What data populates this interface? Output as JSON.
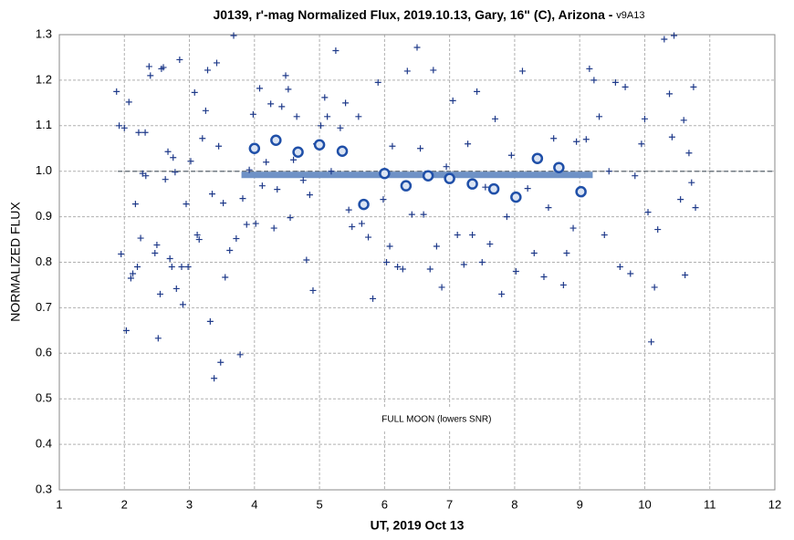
{
  "chart_data": {
    "type": "scatter",
    "title": "J0139, r'-mag Normalized Flux, 2019.10.13, Gary, 16\" (C), Arizona - ",
    "title_suffix": "v9A13",
    "x_label": "UT, 2019 Oct 13",
    "y_label": "NORMALIZED FLUX",
    "xlim": [
      1,
      12
    ],
    "ylim": [
      0.3,
      1.3
    ],
    "xticks": [
      1,
      2,
      3,
      4,
      5,
      6,
      7,
      8,
      9,
      10,
      11,
      12
    ],
    "yticks": [
      0.3,
      0.4,
      0.5,
      0.6,
      0.7,
      0.8,
      0.9,
      {
        "value": 1,
        "label": "1.0"
      },
      1.1,
      1.2,
      1.3
    ],
    "grid": true,
    "annotation": {
      "text": "FULL MOON (lowers SNR)",
      "x": 6.8,
      "y": 0.455
    },
    "series": [
      {
        "style": "cross",
        "color": "#1f3a8a",
        "x": [
          1.88,
          1.92,
          1.95,
          2.0,
          2.03,
          2.07,
          2.1,
          2.13,
          2.17,
          2.2,
          2.22,
          2.25,
          2.28,
          2.32,
          2.33,
          2.38,
          2.4,
          2.47,
          2.5,
          2.52,
          2.55,
          2.57,
          2.6,
          2.63,
          2.67,
          2.7,
          2.73,
          2.75,
          2.78,
          2.8,
          2.85,
          2.88,
          2.9,
          2.95,
          2.98,
          3.02,
          3.08,
          3.12,
          3.15,
          3.2,
          3.25,
          3.28,
          3.32,
          3.35,
          3.38,
          3.42,
          3.45,
          3.48,
          3.52,
          3.55,
          3.62,
          3.68,
          3.72,
          3.78,
          3.82,
          3.88,
          3.92,
          3.98,
          4.02,
          4.08,
          4.12,
          4.18,
          4.25,
          4.3,
          4.35,
          4.42,
          4.48,
          4.52,
          4.55,
          4.6,
          4.65,
          4.75,
          4.8,
          4.85,
          4.9,
          4.95,
          5.02,
          5.08,
          5.12,
          5.18,
          5.25,
          5.32,
          5.4,
          5.45,
          5.5,
          5.6,
          5.65,
          5.75,
          5.82,
          5.9,
          5.98,
          6.03,
          6.08,
          6.12,
          6.2,
          6.28,
          6.35,
          6.42,
          6.5,
          6.55,
          6.6,
          6.7,
          6.75,
          6.8,
          6.88,
          6.95,
          7.05,
          7.12,
          7.22,
          7.28,
          7.35,
          7.42,
          7.5,
          7.55,
          7.62,
          7.7,
          7.8,
          7.88,
          7.95,
          8.02,
          8.12,
          8.2,
          8.3,
          8.38,
          8.45,
          8.52,
          8.6,
          8.75,
          8.8,
          8.9,
          8.95,
          9.05,
          9.1,
          9.15,
          9.22,
          9.3,
          9.38,
          9.45,
          9.55,
          9.62,
          9.7,
          9.78,
          9.85,
          9.95,
          10.0,
          10.05,
          10.1,
          10.15,
          10.2,
          10.3,
          10.38,
          10.42,
          10.45,
          10.55,
          10.6,
          10.62,
          10.68,
          10.72,
          10.75,
          10.78
        ],
        "values": [
          1.175,
          1.1,
          0.818,
          1.095,
          0.65,
          1.152,
          0.765,
          0.775,
          0.928,
          0.79,
          1.085,
          0.853,
          0.995,
          1.085,
          0.99,
          1.23,
          1.21,
          0.82,
          0.838,
          0.633,
          0.73,
          1.225,
          1.228,
          0.982,
          1.043,
          0.808,
          0.79,
          1.03,
          0.998,
          0.742,
          1.245,
          0.79,
          0.707,
          0.928,
          0.79,
          1.022,
          1.173,
          0.86,
          0.85,
          1.072,
          1.133,
          1.222,
          0.67,
          0.95,
          0.545,
          1.238,
          1.055,
          0.58,
          0.93,
          0.767,
          0.826,
          1.298,
          0.852,
          0.597,
          0.94,
          0.883,
          1.003,
          1.125,
          0.885,
          1.182,
          0.968,
          1.02,
          1.148,
          0.875,
          0.96,
          1.142,
          1.21,
          1.18,
          0.898,
          1.025,
          1.12,
          0.98,
          0.805,
          0.948,
          0.738,
          1.06,
          1.1,
          1.162,
          1.12,
          1.0,
          1.265,
          1.095,
          1.15,
          0.915,
          0.878,
          1.12,
          0.885,
          0.855,
          0.72,
          1.195,
          0.938,
          0.8,
          0.835,
          1.055,
          0.79,
          0.785,
          1.22,
          0.905,
          1.272,
          1.05,
          0.905,
          0.785,
          1.222,
          0.835,
          0.745,
          1.01,
          1.155,
          0.86,
          0.795,
          1.06,
          0.86,
          1.175,
          0.8,
          0.965,
          0.84,
          1.115,
          0.73,
          0.9,
          1.035,
          0.78,
          1.22,
          0.962,
          0.82,
          1.025,
          0.768,
          0.92,
          1.072,
          0.75,
          0.82,
          0.875,
          1.065,
          0.95,
          1.07,
          1.225,
          1.2,
          1.12,
          0.86,
          1.0,
          1.195,
          0.79,
          1.185,
          0.775,
          0.99,
          1.06,
          1.115,
          0.91,
          0.625,
          0.745,
          0.872,
          1.29,
          1.17,
          1.075,
          1.298,
          0.938,
          1.112,
          0.772,
          1.04,
          0.975,
          1.185,
          0.92
        ]
      },
      {
        "style": "dashed-line",
        "color": "#707880",
        "x": [
          1.9,
          12
        ],
        "values": [
          1,
          1
        ]
      },
      {
        "style": "band-line",
        "color": "#6f92c6",
        "x": [
          3.8,
          9.2
        ],
        "values": [
          0.992,
          0.992
        ]
      },
      {
        "style": "circle",
        "color": "#1f4fa8",
        "x": [
          4.0,
          4.33,
          4.67,
          5.0,
          5.35,
          5.68,
          6.0,
          6.33,
          6.67,
          7.0,
          7.35,
          7.68,
          8.02,
          8.35,
          8.68,
          9.02
        ],
        "values": [
          1.05,
          1.068,
          1.042,
          1.058,
          1.044,
          0.927,
          0.995,
          0.968,
          0.99,
          0.984,
          0.972,
          0.961,
          0.943,
          1.028,
          1.008,
          0.955
        ]
      }
    ]
  }
}
